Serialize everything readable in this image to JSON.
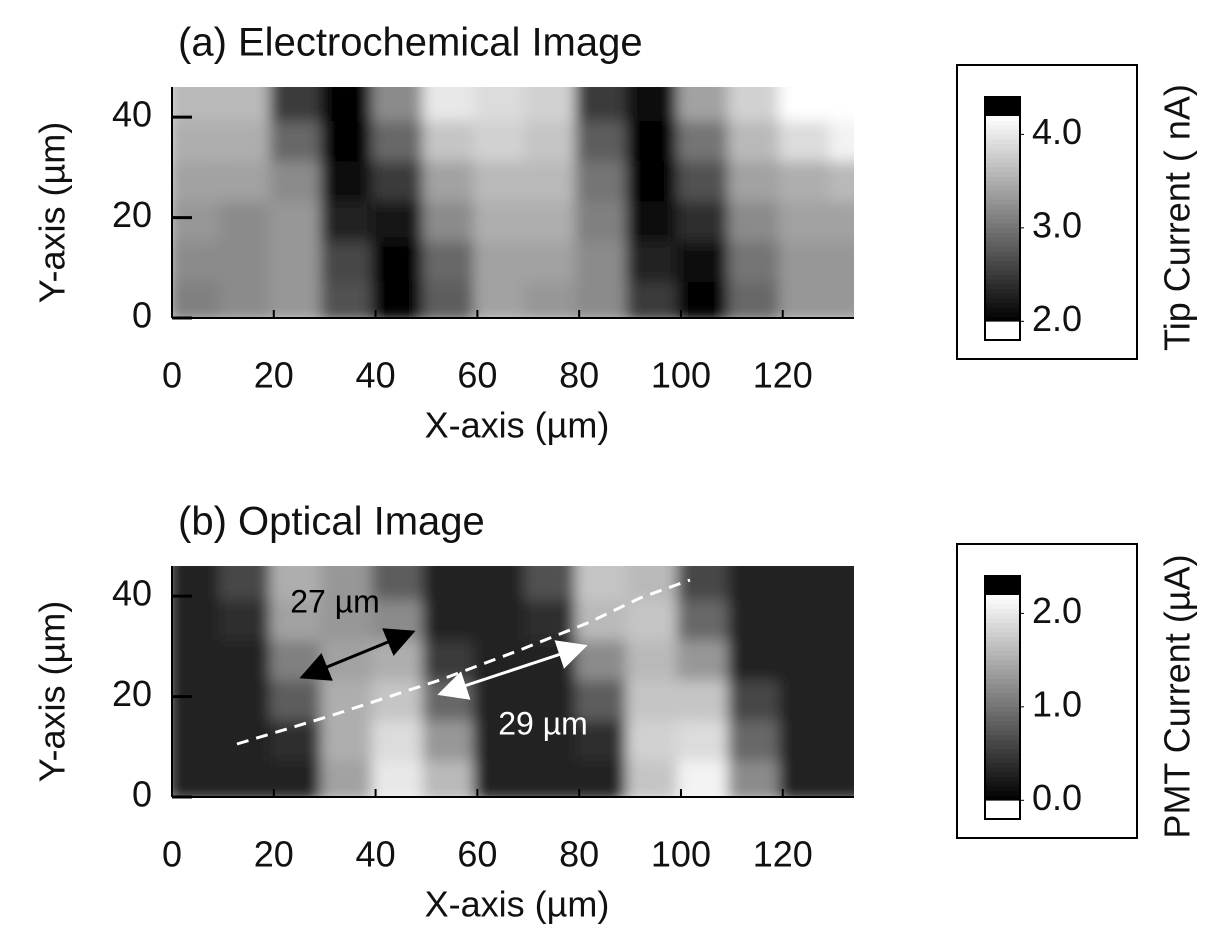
{
  "chart_data": [
    {
      "type": "heatmap",
      "title": "(a) Electrochemical Image",
      "x_label": "X-axis (µm)",
      "y_label": "Y-axis (µm)",
      "x": [
        5,
        15,
        25,
        35,
        45,
        55,
        65,
        75,
        85,
        95,
        105,
        115,
        125,
        135
      ],
      "y": [
        4,
        12,
        20,
        28,
        36,
        44
      ],
      "z": [
        [
          3.1,
          3.2,
          3.3,
          2.7,
          2.0,
          2.8,
          3.4,
          3.3,
          3.2,
          2.5,
          2.0,
          2.9,
          3.3,
          3.3
        ],
        [
          3.2,
          3.2,
          3.3,
          2.6,
          2.0,
          2.9,
          3.4,
          3.4,
          3.2,
          2.3,
          2.1,
          3.0,
          3.3,
          3.3
        ],
        [
          3.3,
          3.2,
          3.3,
          2.3,
          2.2,
          3.2,
          3.5,
          3.5,
          3.1,
          2.1,
          2.4,
          3.2,
          3.4,
          3.4
        ],
        [
          3.4,
          3.4,
          3.2,
          2.1,
          2.5,
          3.4,
          3.6,
          3.6,
          3.0,
          2.0,
          2.7,
          3.4,
          3.5,
          3.6
        ],
        [
          3.5,
          3.5,
          2.9,
          2.0,
          2.9,
          3.7,
          3.8,
          3.7,
          2.8,
          2.0,
          3.0,
          3.6,
          3.9,
          4.1
        ],
        [
          3.6,
          3.6,
          2.5,
          2.0,
          3.2,
          4.0,
          3.9,
          3.8,
          2.5,
          2.1,
          3.4,
          3.8,
          4.2,
          4.2
        ]
      ],
      "xlim": [
        0,
        134
      ],
      "ylim": [
        0,
        46
      ],
      "xticks": [
        0,
        20,
        40,
        60,
        80,
        100,
        120
      ],
      "yticks": [
        0,
        20,
        40
      ],
      "zlim": [
        2.0,
        4.2
      ],
      "colorbar_lim": [
        1.8,
        4.4
      ],
      "colorbar_ticks": [
        {
          "value": 2,
          "label": "2.0"
        },
        {
          "value": 3,
          "label": "3.0"
        },
        {
          "value": 4,
          "label": "4.0"
        }
      ],
      "colorbar_label": "Tip Current ( nA)",
      "annotations": []
    },
    {
      "type": "heatmap",
      "title": "(b) Optical Image",
      "x_label": "X-axis (µm)",
      "y_label": "Y-axis (µm)",
      "x": [
        5,
        15,
        25,
        35,
        45,
        55,
        65,
        75,
        85,
        95,
        105,
        115,
        125,
        135
      ],
      "y": [
        4,
        12,
        20,
        28,
        36,
        44
      ],
      "z": [
        [
          0.3,
          0.3,
          0.3,
          1.4,
          2.0,
          1.6,
          0.3,
          0.3,
          0.3,
          1.7,
          2.1,
          1.2,
          0.3,
          0.3
        ],
        [
          0.3,
          0.3,
          0.4,
          1.5,
          1.9,
          1.3,
          0.3,
          0.3,
          0.4,
          1.8,
          1.9,
          0.9,
          0.3,
          0.3
        ],
        [
          0.3,
          0.3,
          0.8,
          1.5,
          1.7,
          0.9,
          0.3,
          0.3,
          0.8,
          1.7,
          1.7,
          0.6,
          0.3,
          0.3
        ],
        [
          0.3,
          0.3,
          1.1,
          1.4,
          1.5,
          0.5,
          0.3,
          0.3,
          1.2,
          1.6,
          1.3,
          0.3,
          0.3,
          0.3
        ],
        [
          0.3,
          0.4,
          1.4,
          1.3,
          1.2,
          0.3,
          0.3,
          0.4,
          1.6,
          1.7,
          0.9,
          0.3,
          0.3,
          0.3
        ],
        [
          0.3,
          0.6,
          1.5,
          1.3,
          0.8,
          0.3,
          0.3,
          0.7,
          1.7,
          1.6,
          0.6,
          0.3,
          0.3,
          0.3
        ]
      ],
      "xlim": [
        0,
        134
      ],
      "ylim": [
        0,
        46
      ],
      "xticks": [
        0,
        20,
        40,
        60,
        80,
        100,
        120
      ],
      "yticks": [
        0,
        20,
        40
      ],
      "zlim": [
        0.0,
        2.2
      ],
      "colorbar_lim": [
        -0.2,
        2.4
      ],
      "colorbar_ticks": [
        {
          "value": 0,
          "label": "0.0"
        },
        {
          "value": 1,
          "label": "1.0"
        },
        {
          "value": 2,
          "label": "2.0"
        }
      ],
      "colorbar_label": "PMT Current (µA)",
      "annotations": [
        {
          "text": "27 µm",
          "color": "#000000"
        },
        {
          "text": "29 µm",
          "color": "#ffffff"
        }
      ]
    }
  ]
}
